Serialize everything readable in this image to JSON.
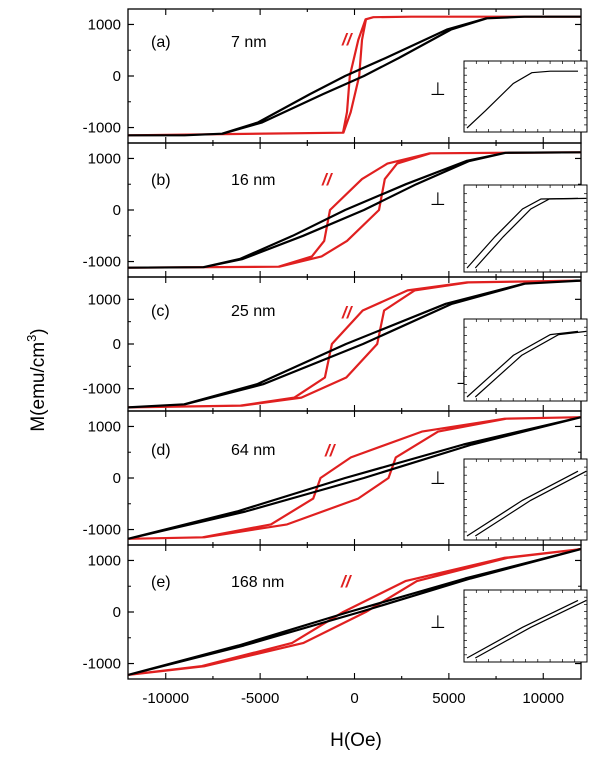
{
  "figure": {
    "ylabel": "M(emu/cm",
    "ylabel_sup": "3",
    "ylabel_close": ")",
    "xlabel": "H(Oe)",
    "parallel_symbol": "//",
    "perp_symbol": "⊥"
  },
  "chart_data": [
    {
      "type": "line",
      "panel": "(a)",
      "thickness": "7 nm",
      "xlim": [
        -12000,
        12000
      ],
      "ylim": [
        -1300,
        1300
      ],
      "yticks": [
        -1000,
        0,
        1000
      ],
      "Ms": 1150,
      "xticks": [
        -10000,
        -5000,
        0,
        5000,
        10000
      ],
      "series": [
        {
          "name": "//",
          "color": "#e02020",
          "x": [
            -12000,
            -600,
            -300,
            0,
            300,
            600,
            1000,
            3000,
            6000,
            12000
          ],
          "y": [
            -1150,
            -1100,
            -700,
            0,
            700,
            1100,
            1140,
            1150,
            1150,
            1150
          ]
        },
        {
          "name": "⊥",
          "color": "#000000",
          "x": [
            -12000,
            -9000,
            -7000,
            -5000,
            -2000,
            0,
            2000,
            5000,
            7000,
            9000,
            12000
          ],
          "y": [
            -1150,
            -1150,
            -1120,
            -900,
            -350,
            0,
            350,
            900,
            1120,
            1150,
            1150
          ]
        }
      ]
    },
    {
      "type": "line",
      "panel": "(b)",
      "thickness": "16 nm",
      "xlim": [
        -12000,
        12000
      ],
      "ylim": [
        -1300,
        1300
      ],
      "yticks": [
        -1000,
        0,
        1000
      ],
      "Ms": 1120,
      "xticks": [
        -10000,
        -5000,
        0,
        5000,
        10000
      ],
      "series": [
        {
          "name": "//",
          "color": "#e02020",
          "x": [
            -12000,
            -4000,
            -2000,
            -1000,
            0,
            1000,
            2000,
            4000,
            12000
          ],
          "y": [
            -1120,
            -1100,
            -900,
            -600,
            0,
            600,
            900,
            1100,
            1120
          ]
        },
        {
          "name": "⊥",
          "color": "#000000",
          "x": [
            -12000,
            -8000,
            -6000,
            -3000,
            0,
            3000,
            6000,
            8000,
            12000
          ],
          "y": [
            -1120,
            -1110,
            -950,
            -500,
            0,
            500,
            950,
            1110,
            1120
          ]
        }
      ]
    },
    {
      "type": "line",
      "panel": "(c)",
      "thickness": "25 nm",
      "xlim": [
        -12000,
        12000
      ],
      "ylim": [
        -1500,
        1500
      ],
      "yticks": [
        -1000,
        0,
        1000
      ],
      "Ms": 1420,
      "xticks": [
        -10000,
        -5000,
        0,
        5000,
        10000
      ],
      "series": [
        {
          "name": "//",
          "color": "#e02020",
          "x": [
            -12000,
            -6000,
            -3000,
            -1000,
            0,
            1000,
            3000,
            6000,
            12000
          ],
          "y": [
            -1420,
            -1380,
            -1200,
            -750,
            0,
            750,
            1200,
            1380,
            1420
          ]
        },
        {
          "name": "⊥",
          "color": "#000000",
          "x": [
            -12000,
            -9000,
            -5000,
            0,
            5000,
            9000,
            12000
          ],
          "y": [
            -1420,
            -1350,
            -900,
            0,
            900,
            1350,
            1420
          ]
        }
      ]
    },
    {
      "type": "line",
      "panel": "(d)",
      "thickness": "64 nm",
      "xlim": [
        -12000,
        12000
      ],
      "ylim": [
        -1300,
        1300
      ],
      "yticks": [
        -1000,
        0,
        1000
      ],
      "Ms": 1180,
      "xticks": [
        -10000,
        -5000,
        0,
        5000,
        10000
      ],
      "series": [
        {
          "name": "//",
          "color": "#e02020",
          "x": [
            -12000,
            -8000,
            -4000,
            -1000,
            0,
            1000,
            4000,
            8000,
            12000
          ],
          "y": [
            -1180,
            -1150,
            -900,
            -400,
            0,
            400,
            900,
            1150,
            1180
          ]
        },
        {
          "name": "⊥",
          "color": "#000000",
          "x": [
            -12000,
            -6000,
            0,
            6000,
            12000
          ],
          "y": [
            -1180,
            -650,
            0,
            650,
            1180
          ]
        }
      ]
    },
    {
      "type": "line",
      "panel": "(e)",
      "thickness": "168 nm",
      "xlim": [
        -12000,
        12000
      ],
      "ylim": [
        -1300,
        1300
      ],
      "yticks": [
        -1000,
        0,
        1000
      ],
      "Ms": 1220,
      "xticks": [
        -10000,
        -5000,
        0,
        5000,
        10000
      ],
      "series": [
        {
          "name": "//",
          "color": "#e02020",
          "x": [
            -12000,
            -8000,
            -3000,
            0,
            3000,
            8000,
            12000
          ],
          "y": [
            -1220,
            -1050,
            -600,
            0,
            600,
            1050,
            1220
          ]
        },
        {
          "name": "⊥",
          "color": "#000000",
          "x": [
            -12000,
            -6000,
            0,
            6000,
            12000
          ],
          "y": [
            -1220,
            -650,
            0,
            650,
            1220
          ]
        }
      ]
    }
  ]
}
